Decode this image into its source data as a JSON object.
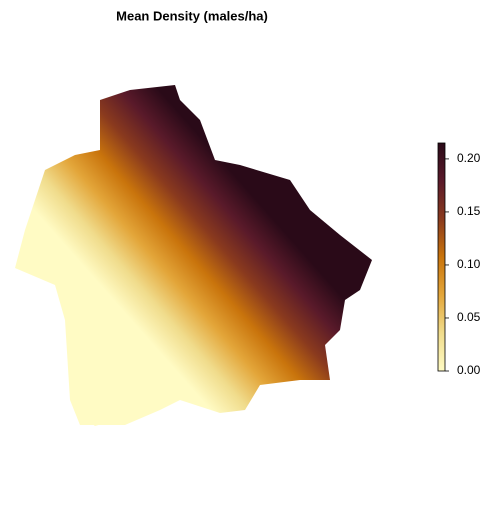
{
  "title": "Mean Density (males/ha)",
  "colorbar": {
    "lim": [
      0,
      0.215
    ],
    "ticks": [
      {
        "value": 0,
        "label": "0.00"
      },
      {
        "value": 0.05,
        "label": "0.05"
      },
      {
        "value": 0.1,
        "label": "0.10"
      },
      {
        "value": 0.15,
        "label": "0.15"
      },
      {
        "value": 0.2,
        "label": "0.20"
      }
    ],
    "colors": [
      "#fffbc4",
      "#f0dc8c",
      "#e3a63a",
      "#c9740c",
      "#8a3a1e",
      "#5a1a2a",
      "#2a0a18"
    ]
  }
}
